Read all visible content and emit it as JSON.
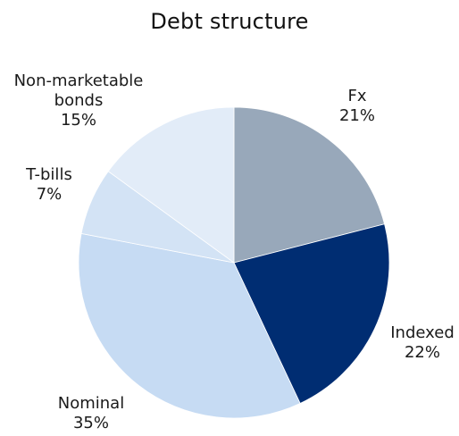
{
  "chart_data": {
    "type": "pie",
    "title": "Debt structure",
    "slices": [
      {
        "label": "Fx",
        "value": 21,
        "value_label": "21%",
        "color": "#98A8BA"
      },
      {
        "label": "Indexed",
        "value": 22,
        "value_label": "22%",
        "color": "#002D72"
      },
      {
        "label": "Nominal",
        "value": 35,
        "value_label": "35%",
        "color": "#C6DBF3"
      },
      {
        "label": "T-bills",
        "value": 7,
        "value_label": "7%",
        "color": "#D3E3F5"
      },
      {
        "label": "Non-marketable bonds",
        "value": 15,
        "value_label": "15%",
        "color": "#E2ECF8"
      }
    ],
    "start_angle": "12 o'clock",
    "direction": "clockwise",
    "legend": "none",
    "labels": "outside"
  }
}
